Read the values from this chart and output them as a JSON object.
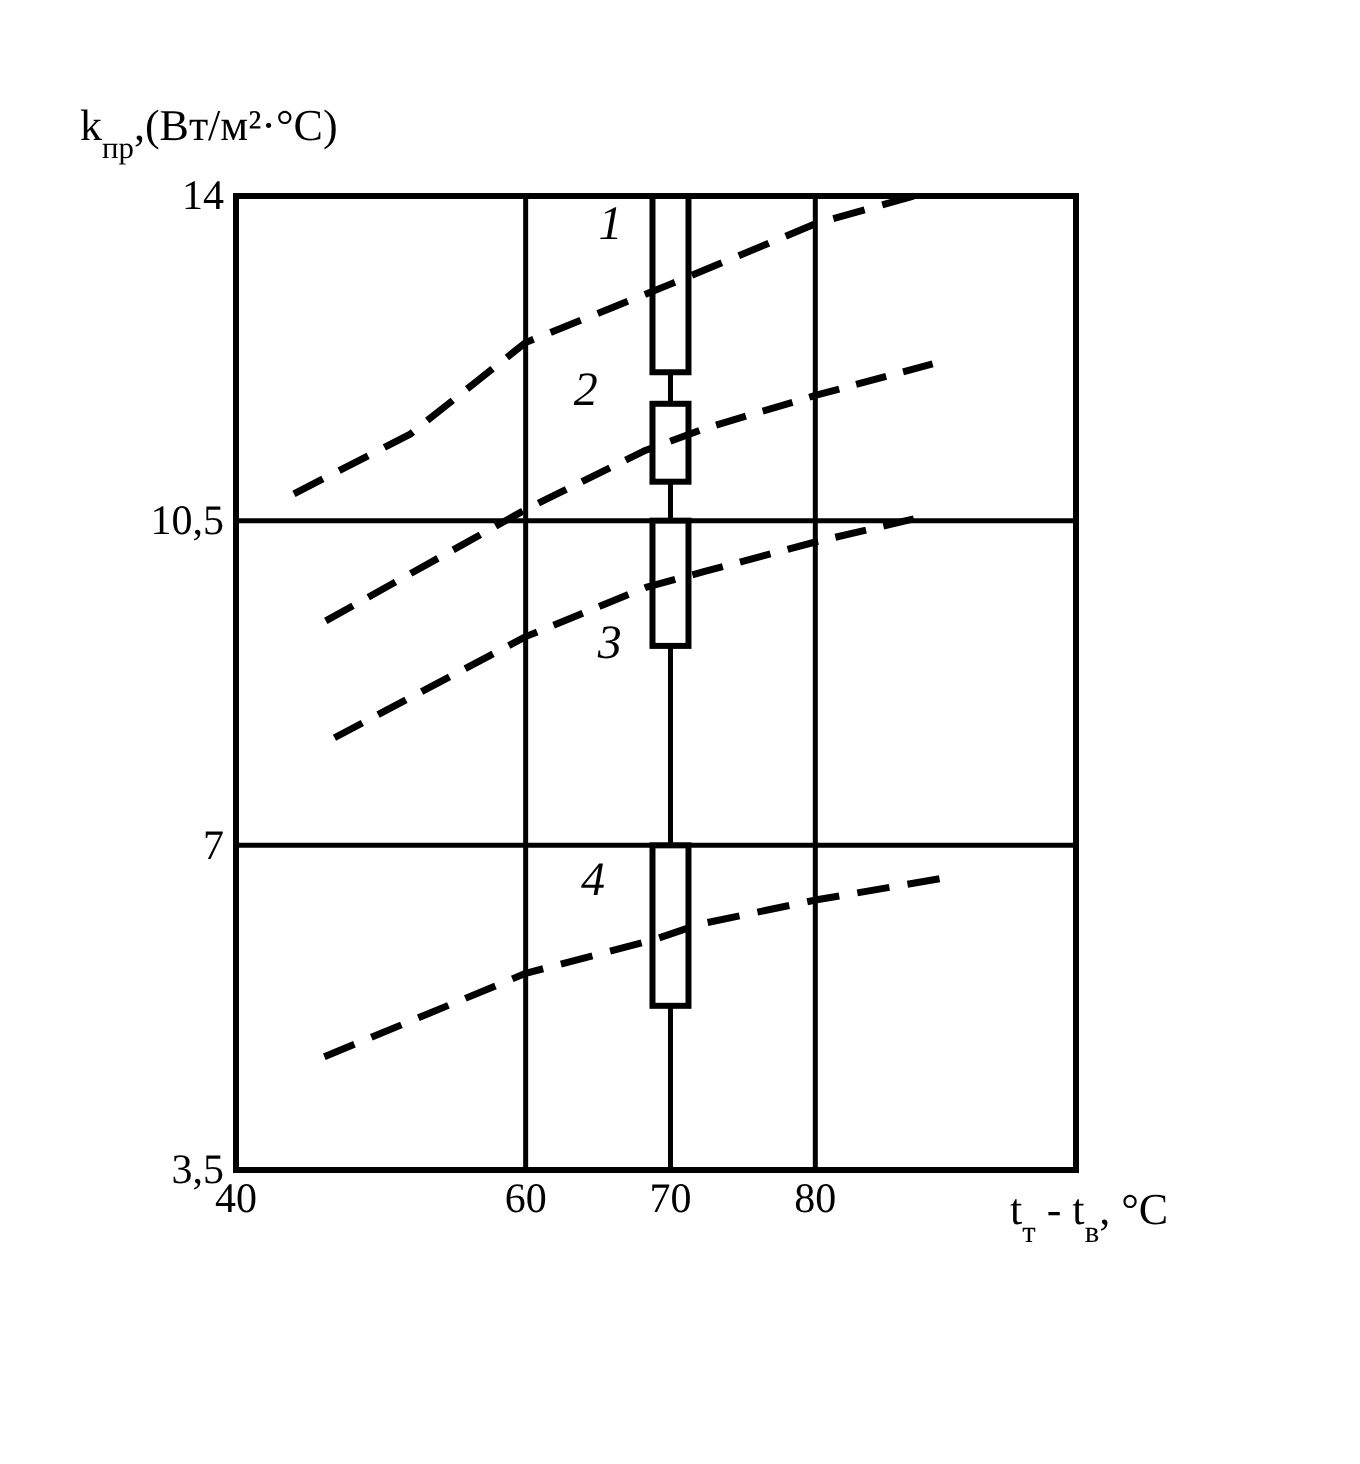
{
  "chart_data": {
    "type": "line",
    "xlabel": "t$_{т}$ - t$_{в}$, °C",
    "ylabel": "k$_{пр}$,(Вт/м²·°C)",
    "xlim": [
      40,
      98
    ],
    "xticks": [
      40,
      60,
      70,
      80
    ],
    "ylim": [
      3.5,
      14
    ],
    "yticks": [
      {
        "value": 3.5,
        "label": "3,5"
      },
      7,
      {
        "value": 10.5,
        "label": "10,5"
      },
      14
    ],
    "grid": true,
    "line_style": "dashed",
    "marker": "none",
    "series": [
      {
        "name": "1",
        "color": "#000000",
        "x": [
          44.0,
          52,
          60,
          70,
          80,
          86.8
        ],
        "values": [
          10.79,
          11.43,
          12.42,
          13.05,
          13.7,
          14.0
        ]
      },
      {
        "name": "2",
        "color": "#000000",
        "x": [
          46.2,
          60,
          68.3,
          72.3,
          80,
          88.1
        ],
        "values": [
          9.42,
          10.62,
          11.26,
          11.49,
          11.85,
          12.19
        ]
      },
      {
        "name": "3",
        "color": "#000000",
        "x": [
          46.8,
          60,
          68.3,
          72.3,
          80,
          86.8
        ],
        "values": [
          8.16,
          9.25,
          9.78,
          9.95,
          10.27,
          10.52
        ]
      },
      {
        "name": "4",
        "color": "#000000",
        "x": [
          46.1,
          60,
          68.8,
          72.0,
          80,
          88.6
        ],
        "values": [
          4.72,
          5.62,
          5.98,
          6.15,
          6.41,
          6.64
        ]
      },
      {
        "type": "bar",
        "color": "#ffffff",
        "x": [
          70
        ],
        "base": [
          12.1
        ],
        "values": [
          1.9
        ]
      },
      {
        "type": "bar",
        "color": "#ffffff",
        "x": [
          70
        ],
        "base": [
          10.92
        ],
        "values": [
          0.84
        ]
      },
      {
        "type": "bar",
        "color": "#ffffff",
        "x": [
          70
        ],
        "base": [
          9.15
        ],
        "values": [
          1.35
        ]
      },
      {
        "type": "bar",
        "color": "#ffffff",
        "x": [
          70
        ],
        "base": [
          5.27
        ],
        "values": [
          1.73
        ]
      }
    ]
  }
}
